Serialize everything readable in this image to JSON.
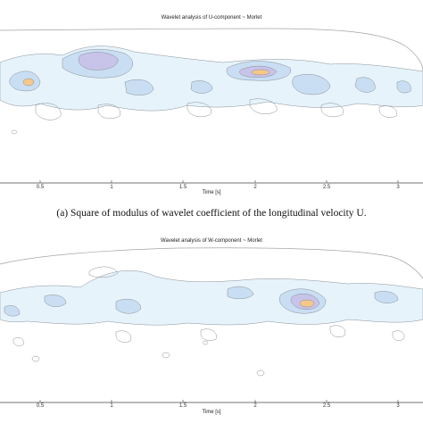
{
  "figure": {
    "panel_a": {
      "title": "Wavelet analysis of U-component ~ Morlet",
      "xlabel": "Time [s]",
      "xticks": [
        "0.5",
        "1",
        "1.5",
        "2",
        "2.5",
        "3"
      ],
      "caption": "(a) Square of modulus of wavelet coefficient of the longitudinal velocity U."
    },
    "panel_b": {
      "title": "Wavelet analysis of W-component ~ Morlet",
      "xlabel": "Time [s]",
      "xticks": [
        "0.5",
        "1",
        "1.5",
        "2",
        "2.5",
        "3"
      ]
    }
  },
  "colors": {
    "contour_line": "#8a8f99",
    "low_fill": "#e6f3fa",
    "mid_fill": "#c9def2",
    "violet_fill": "#c8c3e8",
    "hot_fill": "#f5c88a",
    "hot_core": "#f0a64a"
  }
}
